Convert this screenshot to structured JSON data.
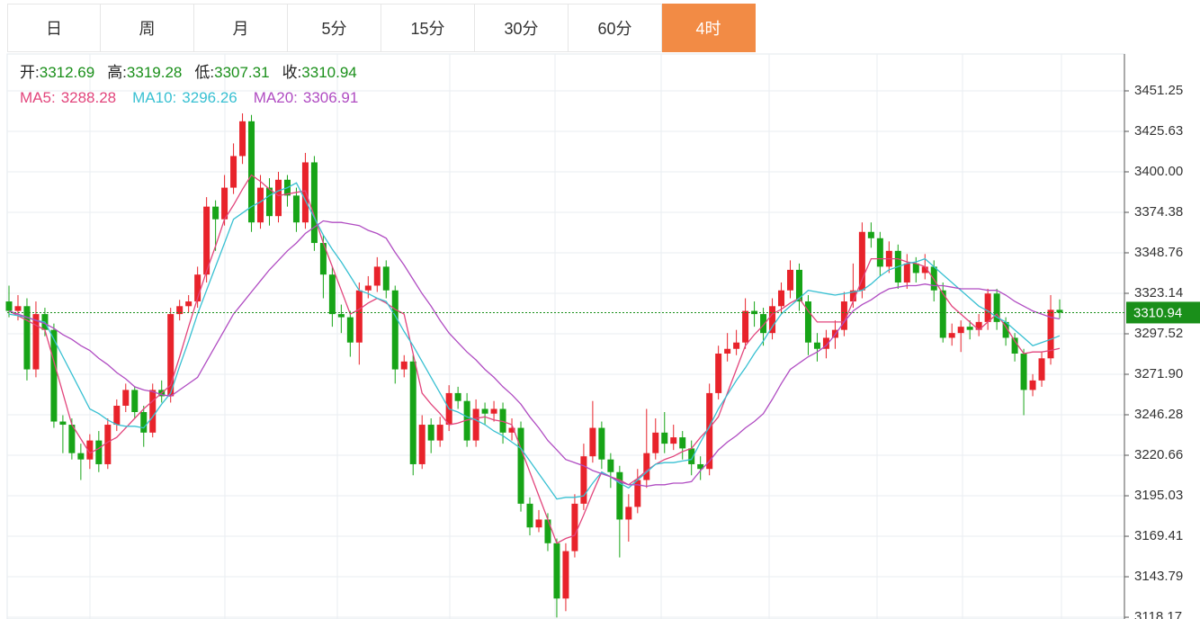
{
  "tabs": [
    "日",
    "周",
    "月",
    "5分",
    "15分",
    "30分",
    "60分",
    "4时"
  ],
  "active_tab": 7,
  "chart_data": {
    "type": "candlestick",
    "ohlc_labels": [
      {
        "label": "开:",
        "value": 3312.69
      },
      {
        "label": "高:",
        "value": 3319.28
      },
      {
        "label": "低:",
        "value": 3307.31
      },
      {
        "label": "收:",
        "value": 3310.94
      }
    ],
    "up_color": "#e8232b",
    "down_color": "#17a417",
    "value_color": "#1a8f1a",
    "open": [
      3318,
      3312,
      3315,
      3275,
      3310,
      3300,
      3242,
      3240,
      3222,
      3218,
      3230,
      3215,
      3240,
      3252,
      3262,
      3248,
      3235,
      3262,
      3258,
      3310,
      3315,
      3318,
      3335,
      3378,
      3370,
      3390,
      3410,
      3432,
      3368,
      3390,
      3372,
      3395,
      3385,
      3368,
      3406,
      3355,
      3335,
      3310,
      3308,
      3292,
      3325,
      3328,
      3340,
      3325,
      3275,
      3280,
      3215,
      3240,
      3230,
      3240,
      3260,
      3255,
      3230,
      3250,
      3247,
      3250,
      3235,
      3238,
      3190,
      3175,
      3180,
      3165,
      3130,
      3160,
      3190,
      3220,
      3238,
      3218,
      3210,
      3180,
      3188,
      3205,
      3222,
      3235,
      3228,
      3232,
      3225,
      3215,
      3212,
      3260,
      3285,
      3288,
      3292,
      3312,
      3310,
      3298,
      3315,
      3325,
      3338,
      3318,
      3292,
      3288,
      3295,
      3300,
      3318,
      3325,
      3362,
      3358,
      3340,
      3350,
      3330,
      3342,
      3336,
      3340,
      3325,
      3295,
      3298,
      3302,
      3300,
      3305,
      3323,
      3305,
      3295,
      3285,
      3262,
      3268,
      3282,
      3312.69
    ],
    "high": [
      3328,
      3322,
      3320,
      3318,
      3314,
      3304,
      3246,
      3244,
      3228,
      3234,
      3236,
      3244,
      3256,
      3266,
      3264,
      3252,
      3266,
      3268,
      3314,
      3319,
      3322,
      3340,
      3384,
      3382,
      3398,
      3418,
      3437,
      3436,
      3398,
      3396,
      3400,
      3398,
      3390,
      3412,
      3410,
      3360,
      3340,
      3316,
      3312,
      3330,
      3334,
      3346,
      3344,
      3328,
      3284,
      3284,
      3246,
      3244,
      3245,
      3265,
      3264,
      3260,
      3256,
      3254,
      3255,
      3254,
      3244,
      3242,
      3194,
      3186,
      3184,
      3168,
      3165,
      3196,
      3228,
      3255,
      3242,
      3222,
      3214,
      3196,
      3212,
      3250,
      3244,
      3248,
      3240,
      3236,
      3230,
      3220,
      3266,
      3290,
      3298,
      3300,
      3320,
      3318,
      3314,
      3320,
      3330,
      3344,
      3342,
      3322,
      3298,
      3300,
      3306,
      3324,
      3342,
      3368,
      3368,
      3362,
      3356,
      3354,
      3348,
      3346,
      3348,
      3344,
      3330,
      3304,
      3306,
      3306,
      3310,
      3326,
      3326,
      3308,
      3298,
      3288,
      3272,
      3286,
      3322,
      3319.28
    ],
    "low": [
      3308,
      3306,
      3268,
      3270,
      3296,
      3238,
      3222,
      3218,
      3205,
      3212,
      3210,
      3212,
      3236,
      3248,
      3244,
      3226,
      3232,
      3254,
      3254,
      3306,
      3311,
      3314,
      3330,
      3350,
      3366,
      3386,
      3405,
      3362,
      3364,
      3366,
      3368,
      3378,
      3362,
      3364,
      3350,
      3320,
      3302,
      3298,
      3283,
      3278,
      3320,
      3324,
      3320,
      3266,
      3270,
      3208,
      3212,
      3222,
      3226,
      3236,
      3250,
      3226,
      3226,
      3240,
      3242,
      3228,
      3230,
      3185,
      3170,
      3172,
      3160,
      3118,
      3122,
      3156,
      3186,
      3216,
      3212,
      3200,
      3156,
      3166,
      3184,
      3200,
      3218,
      3222,
      3224,
      3218,
      3208,
      3205,
      3208,
      3256,
      3280,
      3284,
      3288,
      3302,
      3290,
      3294,
      3310,
      3320,
      3312,
      3284,
      3280,
      3282,
      3288,
      3296,
      3314,
      3320,
      3352,
      3334,
      3336,
      3326,
      3326,
      3330,
      3332,
      3318,
      3292,
      3290,
      3286,
      3294,
      3296,
      3300,
      3300,
      3290,
      3280,
      3246,
      3258,
      3264,
      3278,
      3307.31
    ],
    "close": [
      3312,
      3315,
      3275,
      3310,
      3300,
      3242,
      3240,
      3222,
      3218,
      3230,
      3215,
      3240,
      3252,
      3262,
      3248,
      3235,
      3262,
      3258,
      3310,
      3315,
      3318,
      3335,
      3378,
      3370,
      3390,
      3410,
      3432,
      3368,
      3390,
      3372,
      3395,
      3385,
      3368,
      3406,
      3355,
      3335,
      3310,
      3308,
      3292,
      3325,
      3328,
      3340,
      3325,
      3275,
      3280,
      3215,
      3240,
      3230,
      3240,
      3260,
      3255,
      3230,
      3250,
      3247,
      3250,
      3235,
      3238,
      3190,
      3175,
      3180,
      3165,
      3130,
      3160,
      3190,
      3220,
      3238,
      3218,
      3210,
      3180,
      3188,
      3205,
      3222,
      3235,
      3228,
      3232,
      3225,
      3215,
      3212,
      3260,
      3285,
      3288,
      3292,
      3312,
      3310,
      3298,
      3315,
      3325,
      3338,
      3318,
      3292,
      3288,
      3295,
      3300,
      3318,
      3325,
      3362,
      3358,
      3340,
      3350,
      3330,
      3342,
      3336,
      3340,
      3325,
      3295,
      3298,
      3302,
      3300,
      3305,
      3323,
      3305,
      3295,
      3285,
      3262,
      3268,
      3282,
      3312.69,
      3310.94
    ],
    "series": [
      {
        "name": "MA5:",
        "color": "#e2457c",
        "values": [
          3312,
          3309,
          3306,
          3303,
          3300,
          3280,
          3260,
          3240,
          3231,
          3222,
          3225,
          3229,
          3232,
          3238,
          3244,
          3250,
          3255,
          3260,
          3265,
          3283,
          3302,
          3320,
          3337,
          3353,
          3370,
          3379,
          3389,
          3398,
          3394,
          3389,
          3385,
          3386,
          3387,
          3388,
          3372,
          3355,
          3340,
          3325,
          3310,
          3313,
          3317,
          3320,
          3317,
          3313,
          3310,
          3285,
          3260,
          3253,
          3247,
          3240,
          3241,
          3243,
          3244,
          3245,
          3243,
          3242,
          3240,
          3225,
          3210,
          3195,
          3180,
          3165,
          3168,
          3170,
          3183,
          3197,
          3210,
          3207,
          3205,
          3202,
          3206,
          3211,
          3215,
          3218,
          3220,
          3223,
          3225,
          3232,
          3238,
          3245,
          3260,
          3275,
          3290,
          3297,
          3303,
          3310,
          3313,
          3317,
          3320,
          3312,
          3305,
          3305,
          3305,
          3305,
          3318,
          3332,
          3345,
          3345,
          3345,
          3345,
          3343,
          3342,
          3340,
          3332,
          3323,
          3315,
          3310,
          3305,
          3300,
          3305,
          3310,
          3302,
          3293,
          3285,
          3286,
          3286,
          3287,
          3288.28
        ]
      },
      {
        "name": "MA10:",
        "color": "#38c0d2",
        "values": [
          3310,
          3309,
          3308,
          3306,
          3305,
          3294,
          3283,
          3272,
          3261,
          3250,
          3247,
          3243,
          3240,
          3239,
          3239,
          3238,
          3245,
          3253,
          3260,
          3277,
          3293,
          3310,
          3325,
          3340,
          3355,
          3370,
          3374,
          3378,
          3381,
          3385,
          3388,
          3390,
          3393,
          3382,
          3371,
          3360,
          3351,
          3343,
          3334,
          3325,
          3323,
          3320,
          3318,
          3309,
          3299,
          3290,
          3280,
          3270,
          3260,
          3250,
          3248,
          3245,
          3243,
          3240,
          3236,
          3233,
          3229,
          3225,
          3217,
          3209,
          3201,
          3193,
          3194,
          3194,
          3195,
          3203,
          3210,
          3207,
          3203,
          3200,
          3205,
          3210,
          3215,
          3216,
          3216,
          3217,
          3218,
          3229,
          3239,
          3250,
          3259,
          3268,
          3276,
          3285,
          3293,
          3302,
          3310,
          3315,
          3320,
          3325,
          3324,
          3323,
          3322,
          3323,
          3324,
          3325,
          3329,
          3334,
          3338,
          3340,
          3342,
          3343,
          3345,
          3340,
          3335,
          3330,
          3325,
          3320,
          3315,
          3312,
          3308,
          3305,
          3300,
          3295,
          3290,
          3292,
          3294,
          3296.26
        ]
      },
      {
        "name": "MA20:",
        "color": "#b04cc2",
        "values": [
          3312,
          3310,
          3308,
          3306,
          3304,
          3301,
          3297,
          3294,
          3290,
          3287,
          3282,
          3278,
          3273,
          3269,
          3264,
          3262,
          3261,
          3259,
          3258,
          3262,
          3266,
          3270,
          3280,
          3290,
          3300,
          3310,
          3317,
          3324,
          3331,
          3338,
          3344,
          3350,
          3355,
          3361,
          3365,
          3369,
          3368,
          3368,
          3367,
          3366,
          3363,
          3361,
          3358,
          3349,
          3341,
          3332,
          3323,
          3315,
          3306,
          3298,
          3292,
          3286,
          3281,
          3275,
          3270,
          3264,
          3259,
          3253,
          3245,
          3238,
          3230,
          3224,
          3218,
          3216,
          3214,
          3211,
          3209,
          3207,
          3204,
          3202,
          3202,
          3201,
          3202,
          3202,
          3203,
          3203,
          3204,
          3211,
          3217,
          3224,
          3229,
          3233,
          3238,
          3242,
          3247,
          3256,
          3266,
          3275,
          3279,
          3283,
          3286,
          3290,
          3297,
          3305,
          3312,
          3316,
          3319,
          3323,
          3326,
          3327,
          3328,
          3328,
          3329,
          3328,
          3328,
          3327,
          3326,
          3326,
          3326,
          3325,
          3325,
          3322,
          3318,
          3315,
          3312,
          3310,
          3308,
          3306.91
        ]
      }
    ],
    "ylim": [
      3117.05,
      3474.59
    ],
    "yticks": [
      3451.25,
      3425.63,
      {
        "value": 3400,
        "label": "3400.00"
      },
      3374.38,
      3348.76,
      3323.14,
      3297.52,
      {
        "value": 3271.9,
        "label": "3271.90"
      },
      3246.28,
      3220.66,
      3195.03,
      3169.41,
      3143.79,
      3118.17
    ],
    "grid": true
  }
}
